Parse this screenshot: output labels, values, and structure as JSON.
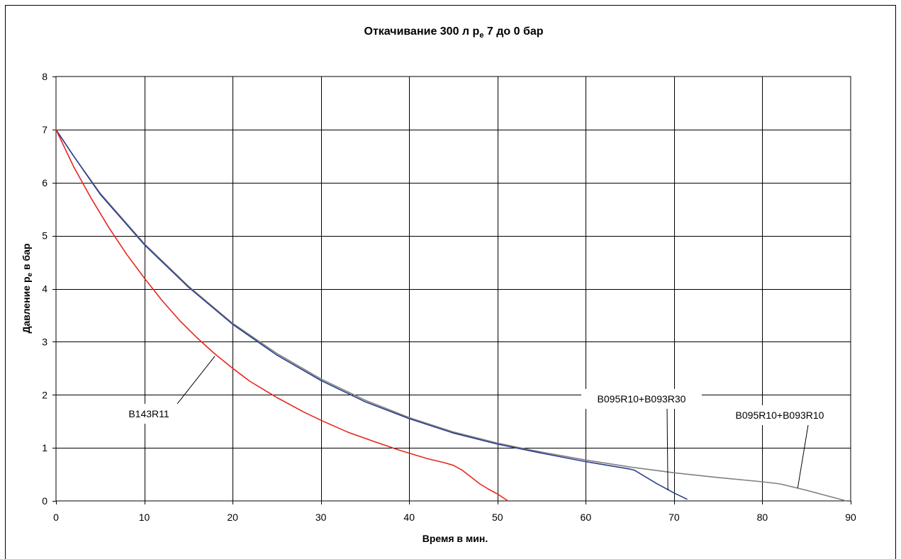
{
  "chart_data": {
    "type": "line",
    "title": {
      "main": "Откачивание 300 л p",
      "sub": "e",
      "rest": " 7 до 0 бар"
    },
    "xlabel": "Время в мин.",
    "ylabel": {
      "main": "Давление p",
      "sub": "e",
      "rest": " в бар"
    },
    "xlim": [
      0,
      90
    ],
    "ylim": [
      0,
      8
    ],
    "xticks": [
      "0",
      "10",
      "20",
      "30",
      "40",
      "50",
      "60",
      "70",
      "80",
      "90"
    ],
    "yticks": [
      "0",
      "1",
      "2",
      "3",
      "4",
      "5",
      "6",
      "7",
      "8"
    ],
    "grid": true,
    "legend": "callouts",
    "series": [
      {
        "name": "B095R10+B093R10",
        "color": "#808080",
        "x": [
          0,
          2,
          5,
          10,
          15,
          20,
          25,
          30,
          35,
          40,
          45,
          50,
          52,
          55,
          60,
          65,
          70,
          75,
          80,
          82,
          85,
          89.5
        ],
        "y": [
          7,
          6.5,
          5.8,
          4.85,
          4.05,
          3.35,
          2.78,
          2.3,
          1.9,
          1.57,
          1.3,
          1.09,
          1.02,
          0.92,
          0.77,
          0.64,
          0.53,
          0.44,
          0.36,
          0.32,
          0.2,
          0
        ]
      },
      {
        "name": "B095R10+B093R30",
        "color": "#2c3e8c",
        "x": [
          0,
          2,
          5,
          10,
          15,
          20,
          25,
          30,
          35,
          40,
          45,
          50,
          55,
          60,
          65,
          65.5,
          68,
          70,
          71.5
        ],
        "y": [
          7,
          6.5,
          5.78,
          4.83,
          4.03,
          3.33,
          2.75,
          2.27,
          1.87,
          1.55,
          1.28,
          1.07,
          0.9,
          0.74,
          0.6,
          0.58,
          0.33,
          0.15,
          0.03
        ]
      },
      {
        "name": "B143R11",
        "color": "#e8251c",
        "x": [
          0,
          2,
          4,
          6,
          8,
          10,
          12,
          14,
          16,
          18,
          20,
          22,
          25,
          28,
          30,
          33,
          36,
          39,
          42,
          44,
          45,
          46,
          47,
          48,
          49,
          50,
          51.2
        ],
        "y": [
          7,
          6.3,
          5.7,
          5.15,
          4.65,
          4.2,
          3.78,
          3.4,
          3.07,
          2.77,
          2.5,
          2.25,
          1.95,
          1.68,
          1.52,
          1.3,
          1.12,
          0.95,
          0.8,
          0.72,
          0.67,
          0.58,
          0.45,
          0.32,
          0.22,
          0.13,
          0
        ]
      }
    ],
    "annotations": [
      {
        "text": "B143R11",
        "anchor_x": 18,
        "anchor_y": 2.73
      },
      {
        "text": "B095R10+B093R30",
        "anchor_x": 69.3,
        "anchor_y": 0.2
      },
      {
        "text": "B095R10+B093R10",
        "anchor_x": 84,
        "anchor_y": 0.24
      }
    ]
  }
}
